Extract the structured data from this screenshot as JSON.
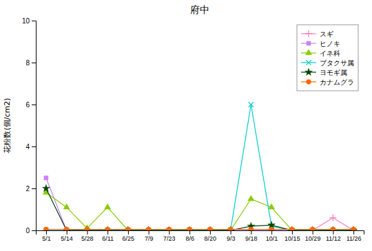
{
  "chart_data": {
    "type": "line",
    "title": "府中",
    "ylabel": "花粉数(個/cm2)",
    "categories": [
      "5/1",
      "5/14",
      "5/28",
      "6/11",
      "6/25",
      "7/9",
      "7/23",
      "8/6",
      "8/20",
      "9/3",
      "9/18",
      "10/1",
      "10/15",
      "10/29",
      "11/12",
      "11/26"
    ],
    "series": [
      {
        "name": "スギ",
        "color": "#ff80c0",
        "marker": "plus",
        "values": [
          0,
          0,
          0,
          0,
          0,
          0,
          0,
          0,
          0,
          0,
          0,
          0,
          0,
          0,
          0.6,
          0
        ]
      },
      {
        "name": "ヒノキ",
        "color": "#cc80ff",
        "marker": "square",
        "values": [
          2.5,
          0,
          0,
          0,
          0,
          0,
          0,
          0,
          0,
          0,
          0,
          0,
          0,
          0,
          0,
          0
        ]
      },
      {
        "name": "イネ科",
        "color": "#88cc00",
        "marker": "triangle",
        "values": [
          1.8,
          1.1,
          0.1,
          1.1,
          0,
          0,
          0,
          0,
          0,
          0,
          1.5,
          1.1,
          0,
          0,
          0,
          0
        ]
      },
      {
        "name": "ブタクサ属",
        "color": "#00cccc",
        "marker": "x",
        "values": [
          0,
          0,
          0,
          0,
          0,
          0,
          0,
          0,
          0,
          0,
          6.0,
          0.2,
          0,
          0,
          0,
          0
        ]
      },
      {
        "name": "ヨモギ属",
        "color": "#004400",
        "marker": "star",
        "values": [
          2.0,
          0,
          0,
          0,
          0,
          0,
          0,
          0,
          0,
          0,
          0.2,
          0.25,
          0,
          0,
          0,
          0
        ]
      },
      {
        "name": "カナムグラ",
        "color": "#ff6600",
        "marker": "circle",
        "values": [
          0.05,
          0.05,
          0.05,
          0.05,
          0.05,
          0.05,
          0.05,
          0.05,
          0.05,
          0.05,
          0.05,
          0.05,
          0.05,
          0.05,
          0.05,
          0.05
        ]
      }
    ],
    "ylim": [
      0,
      10
    ],
    "yticks": [
      0,
      2,
      4,
      6,
      8,
      10
    ],
    "grid": false,
    "legend": "upper right",
    "background_color": "#ffffff"
  }
}
